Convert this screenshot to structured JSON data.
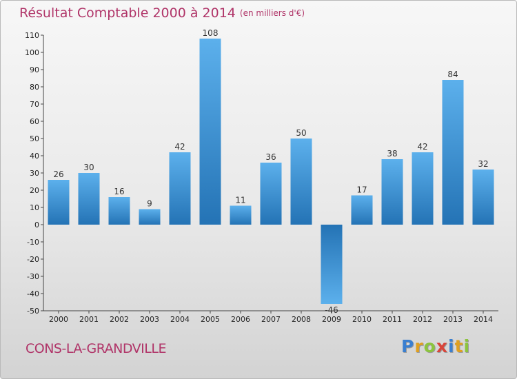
{
  "chart_data": {
    "type": "bar",
    "title": "Résultat Comptable 2000 à 2014",
    "subtitle": "(en milliers d'€)",
    "categories": [
      "2000",
      "2001",
      "2002",
      "2003",
      "2004",
      "2005",
      "2006",
      "2007",
      "2008",
      "2009",
      "2010",
      "2011",
      "2012",
      "2013",
      "2014"
    ],
    "values": [
      26,
      30,
      16,
      9,
      42,
      108,
      11,
      36,
      50,
      -46,
      17,
      38,
      42,
      84,
      32
    ],
    "ylim": [
      -50,
      110
    ],
    "yticks": [
      110,
      100,
      90,
      80,
      70,
      60,
      50,
      40,
      30,
      20,
      10,
      0,
      -10,
      -20,
      -30,
      -40,
      -50
    ],
    "xlabel": "",
    "ylabel": "",
    "grid": false,
    "bar_color": "#3d8fd6"
  },
  "footer": {
    "commune": "CONS-LA-GRANDVILLE",
    "logo_letters": [
      "P",
      "r",
      "o",
      "x",
      "i",
      "t",
      "i"
    ],
    "logo_colors": [
      "#3a7fd0",
      "#e0a020",
      "#8cc43e",
      "#d8453a",
      "#3a7fd0",
      "#e0a020",
      "#8cc43e"
    ]
  }
}
